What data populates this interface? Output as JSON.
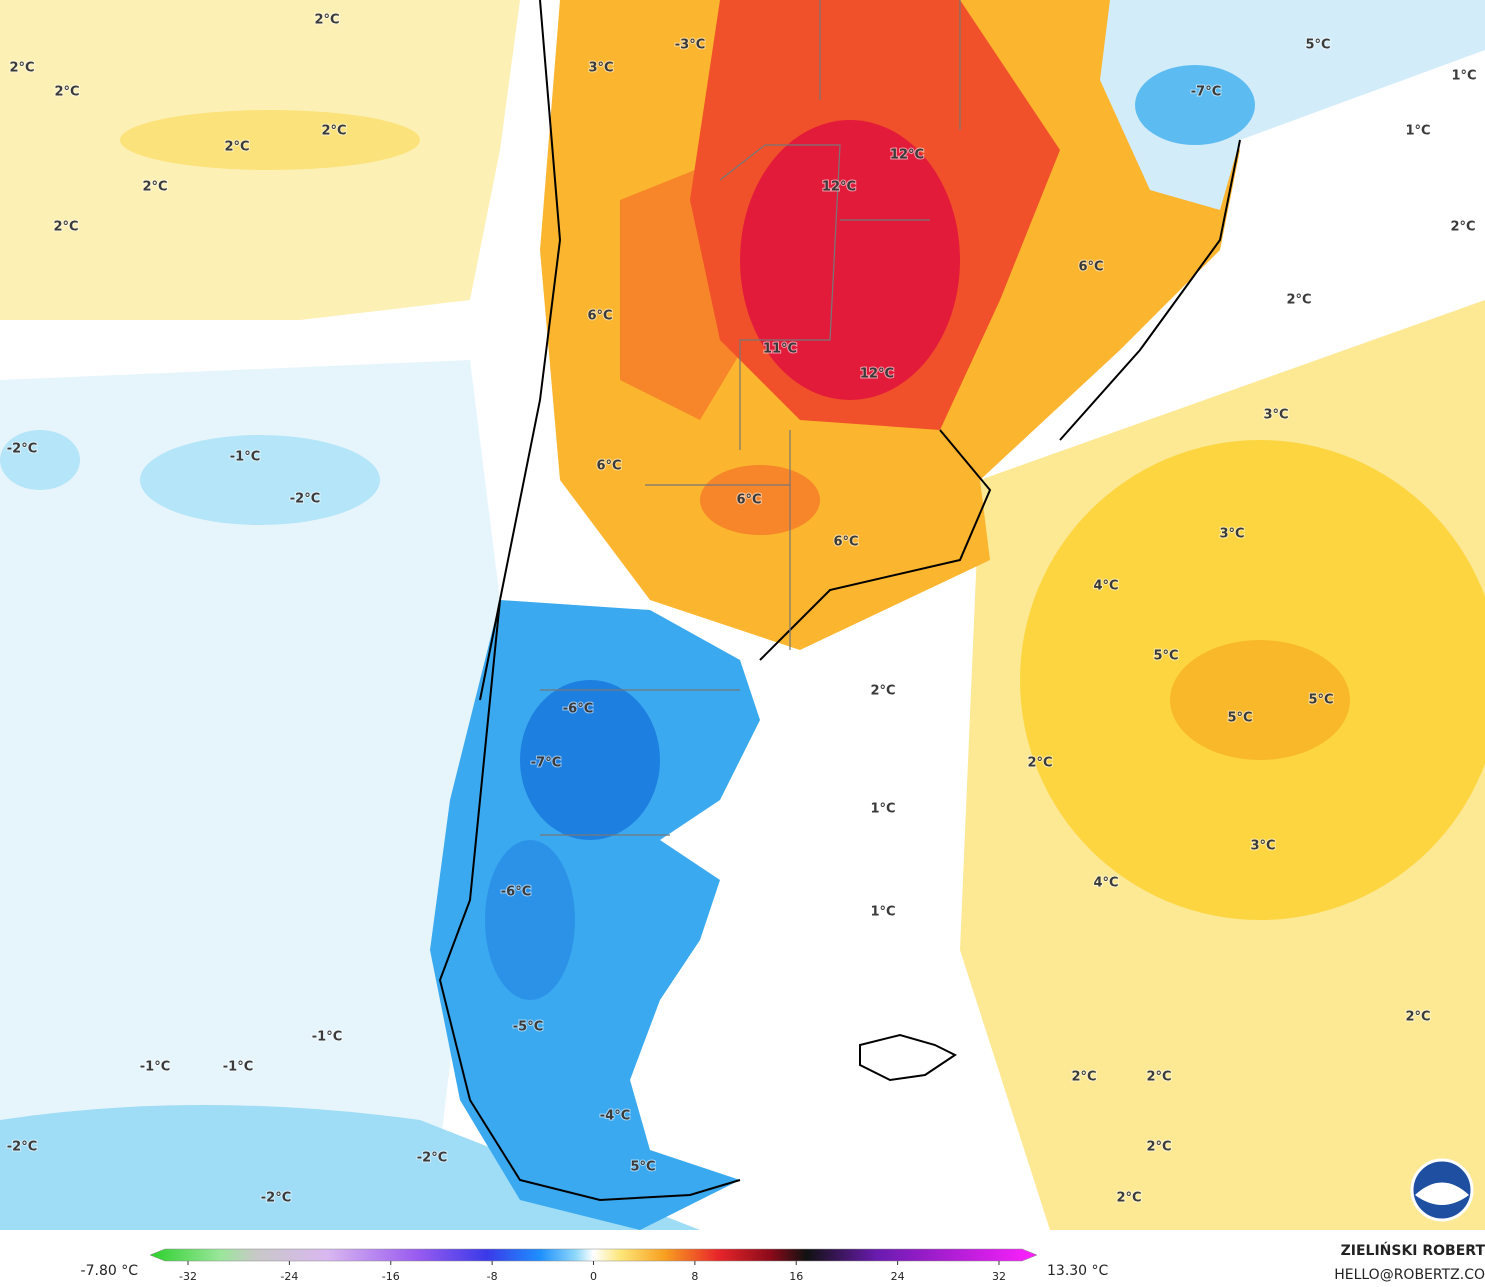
{
  "map": {
    "labels": [
      "2°C",
      "2°C",
      "2°C",
      "2°C",
      "2°C",
      "2°C",
      "2°C",
      "2°C",
      "2°C",
      "2°C",
      "2°C",
      "2°C",
      "2°C",
      "2°C",
      "2°C",
      "2°C",
      "3°C",
      "3°C",
      "3°C",
      "3°C",
      "1°C",
      "1°C",
      "1°C",
      "1°C",
      "5°C",
      "-3°C",
      "-7°C",
      "12°C",
      "12°C",
      "12°C",
      "6°C",
      "6°C",
      "6°C",
      "6°C",
      "6°C",
      "11°C",
      "-2°C",
      "-2°C",
      "-2°C",
      "-2°C",
      "-2°C",
      "-1°C",
      "-1°C",
      "-1°C",
      "-1°C",
      "4°C",
      "4°C",
      "5°C",
      "5°C",
      "5°C",
      "5°C",
      "-6°C",
      "-6°C",
      "-7°C",
      "-5°C",
      "-4°C"
    ]
  },
  "colorbar": {
    "min_label": "-7.80 °C",
    "max_label": "13.30 °C",
    "lim": [
      -35,
      35
    ],
    "ticks": [
      -32,
      -24,
      -16,
      -8,
      0,
      8,
      16,
      24,
      32
    ]
  },
  "footer": {
    "author": "ZIELIŃSKI ROBERT",
    "contact": "HELLO@ROBERTZ.CO"
  }
}
